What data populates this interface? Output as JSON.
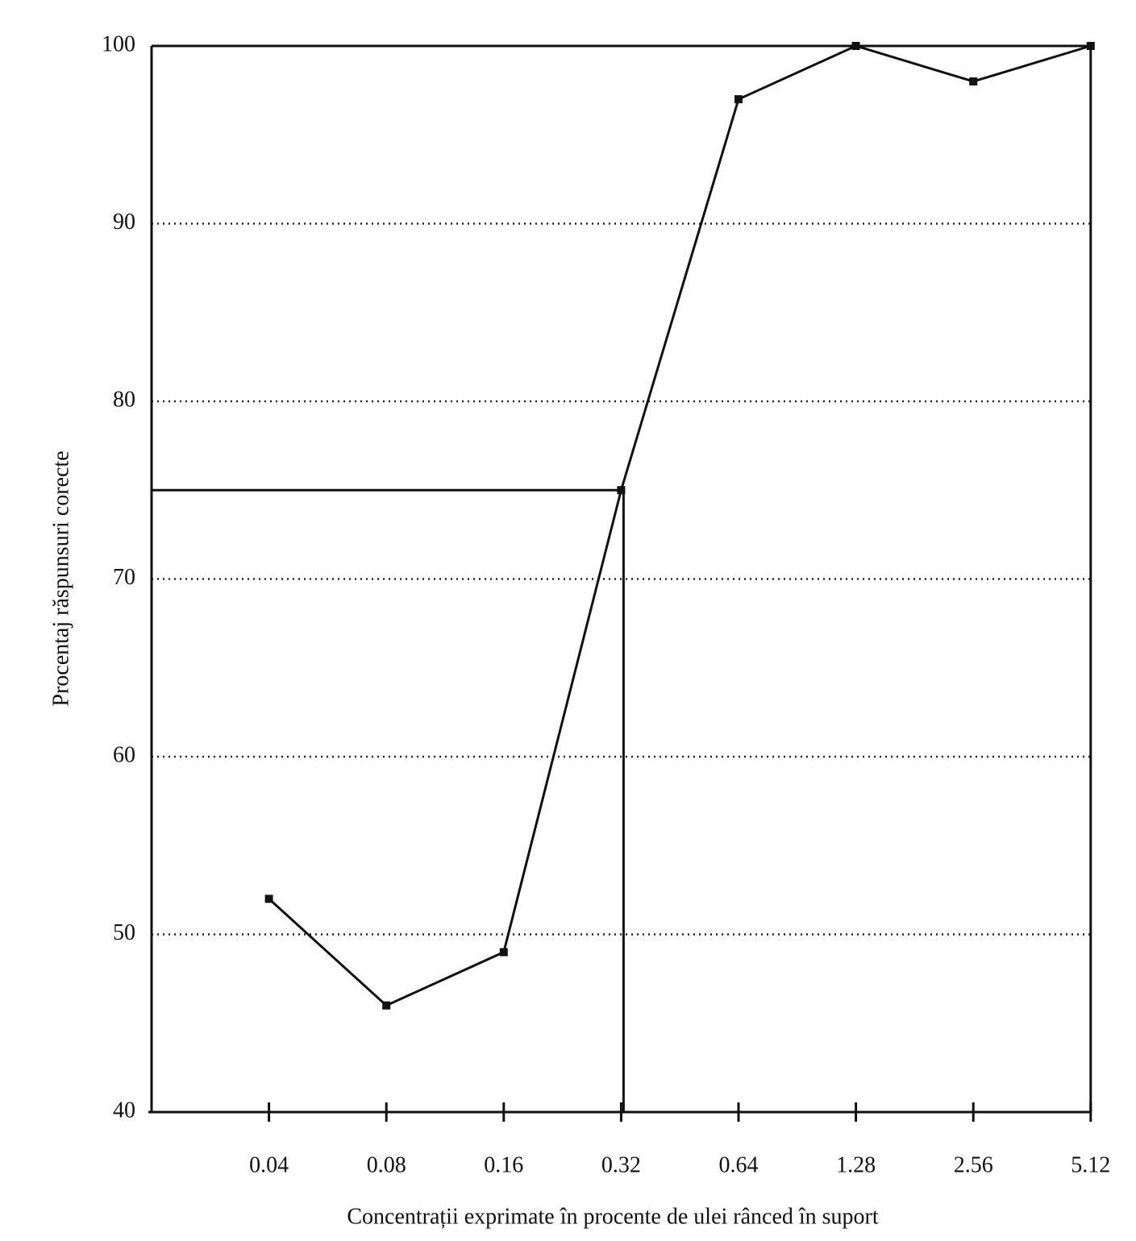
{
  "chart_data": {
    "type": "line",
    "x_label": "Concentrații exprimate în procente de ulei rânced în suport",
    "y_label": "Procentaj răspunsuri corecte",
    "categories": [
      "0.04",
      "0.08",
      "0.16",
      "0.32",
      "0.64",
      "1.28",
      "2.56",
      "5.12"
    ],
    "series": [
      {
        "color": "#111111",
        "values": [
          52,
          46,
          49,
          75,
          97,
          100,
          98,
          100
        ]
      }
    ],
    "ylim": [
      40,
      100
    ],
    "yticks": [
      40,
      50,
      60,
      70,
      80,
      90,
      100
    ],
    "grid": true
  }
}
